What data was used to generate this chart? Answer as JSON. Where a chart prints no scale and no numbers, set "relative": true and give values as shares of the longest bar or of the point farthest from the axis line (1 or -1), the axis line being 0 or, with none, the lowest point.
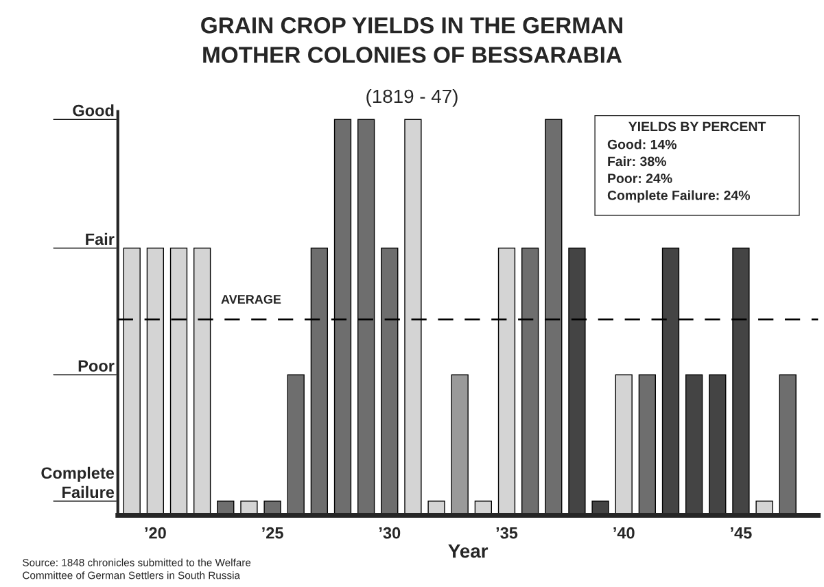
{
  "chart_data": {
    "type": "bar",
    "title": "GRAIN CROP YIELDS IN THE GERMAN\nMOTHER COLONIES OF BESSARABIA",
    "subtitle": "(1819 - 47)",
    "xlabel": "Year",
    "x": [
      1819,
      1820,
      1821,
      1822,
      1823,
      1824,
      1825,
      1826,
      1827,
      1828,
      1829,
      1830,
      1831,
      1832,
      1833,
      1834,
      1835,
      1836,
      1837,
      1838,
      1839,
      1840,
      1841,
      1842,
      1843,
      1844,
      1845,
      1846,
      1847
    ],
    "values": [
      0.675,
      0.675,
      0.675,
      0.675,
      0.036,
      0.036,
      0.036,
      0.355,
      0.675,
      1,
      1,
      0.675,
      1,
      0.036,
      0.355,
      0.036,
      0.675,
      0.675,
      1,
      0.675,
      0.036,
      0.355,
      0.355,
      0.675,
      0.355,
      0.355,
      0.675,
      0.036,
      0.355
    ],
    "relative": true,
    "colors": [
      "#d4d4d4",
      "#d4d4d4",
      "#d4d4d4",
      "#d4d4d4",
      "#6e6e6e",
      "#d4d4d4",
      "#6e6e6e",
      "#6e6e6e",
      "#6e6e6e",
      "#6e6e6e",
      "#6e6e6e",
      "#6e6e6e",
      "#d4d4d4",
      "#d4d4d4",
      "#9a9a9a",
      "#d4d4d4",
      "#d4d4d4",
      "#6e6e6e",
      "#6e6e6e",
      "#444444",
      "#444444",
      "#d4d4d4",
      "#6e6e6e",
      "#444444",
      "#444444",
      "#444444",
      "#444444",
      "#d4d4d4",
      "#6e6e6e"
    ],
    "xlim": [
      1818.4,
      1848.3
    ],
    "xticks": [
      {
        "value": 1820,
        "label": "’20"
      },
      {
        "value": 1825,
        "label": "’25"
      },
      {
        "value": 1830,
        "label": "’30"
      },
      {
        "value": 1835,
        "label": "’35"
      },
      {
        "value": 1840,
        "label": "’40"
      },
      {
        "value": 1845,
        "label": "’45"
      }
    ],
    "ref_lines": [
      {
        "axis": "y",
        "value": 0.495,
        "label": "AVERAGE",
        "line_style": "dashed",
        "color": "#000000"
      }
    ],
    "annotations": [
      "Good",
      "Fair",
      "Poor",
      "Complete\nFailure",
      "YIELDS BY PERCENT",
      "Good: 14%",
      "Fair: 38%",
      "Poor: 24%",
      "Complete Failure: 24%",
      "Source: 1848 chronicles submitted to the Welfare\nCommittee of German Settlers in South Russia"
    ],
    "grid": false,
    "legend": false
  }
}
